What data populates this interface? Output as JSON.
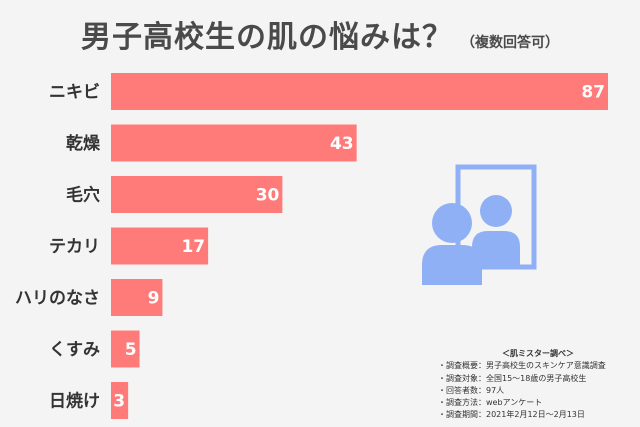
{
  "title": "男子高校生の肌の悩みは？",
  "subtitle": "（複数回答可）",
  "chart_data": {
    "type": "bar",
    "orientation": "horizontal",
    "title": "男子高校生の肌の悩みは？（複数回答可）",
    "categories": [
      "ニキビ",
      "乾燥",
      "毛穴",
      "テカリ",
      "ハリのなさ",
      "くすみ",
      "日焼け"
    ],
    "values": [
      87,
      43,
      30,
      17,
      9,
      5,
      3
    ],
    "bar_color": "#ff7b7a",
    "grid": false,
    "legend": "none",
    "data_labels": "inside-end"
  },
  "source": {
    "title": "＜肌ミスター調べ＞",
    "lines": [
      "・調査概要：男子高校生のスキンケア意識調査",
      "・調査対象：全国15〜18歳の男子高校生",
      "・回答者数：97人",
      "・調査方法：webアンケート",
      "・調査期間：2021年2月12日〜2月13日"
    ]
  },
  "illustration": {
    "name": "person-mirror-icon",
    "color": "#8fb0f5"
  }
}
